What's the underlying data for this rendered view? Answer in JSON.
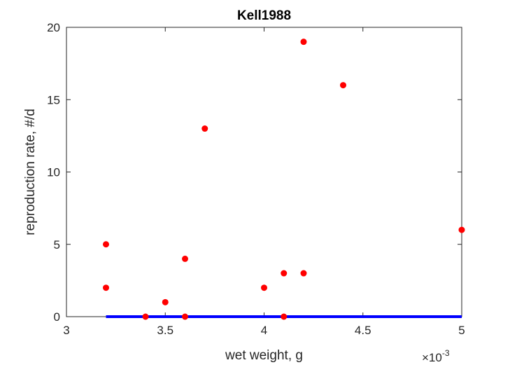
{
  "chart_data": {
    "type": "scatter",
    "title": "Kell1988",
    "xlabel": "wet weight, g",
    "ylabel": "reproduction rate, #/d",
    "x_multiplier_base": "×10",
    "x_multiplier_exp": "-3",
    "xlim": [
      0.003,
      0.005
    ],
    "ylim": [
      0,
      20
    ],
    "x_ticks": [
      0.003,
      0.0035,
      0.004,
      0.0045,
      0.005
    ],
    "x_tick_labels": [
      "3",
      "3.5",
      "4",
      "4.5",
      "5"
    ],
    "y_ticks": [
      0,
      5,
      10,
      15,
      20
    ],
    "y_tick_labels": [
      "0",
      "5",
      "10",
      "15",
      "20"
    ],
    "grid": false,
    "series": [
      {
        "type": "scatter",
        "color": "#ff0000",
        "x": [
          0.0032,
          0.0032,
          0.0034,
          0.0035,
          0.0036,
          0.0036,
          0.0037,
          0.004,
          0.0041,
          0.0041,
          0.0042,
          0.0042,
          0.0044,
          0.005
        ],
        "y": [
          5,
          2,
          0,
          1,
          4,
          0,
          13,
          2,
          3,
          0,
          19,
          3,
          16,
          6
        ]
      },
      {
        "type": "line",
        "color": "#0000ff",
        "x": [
          0.0032,
          0.005
        ],
        "y": [
          0,
          0
        ]
      }
    ]
  }
}
